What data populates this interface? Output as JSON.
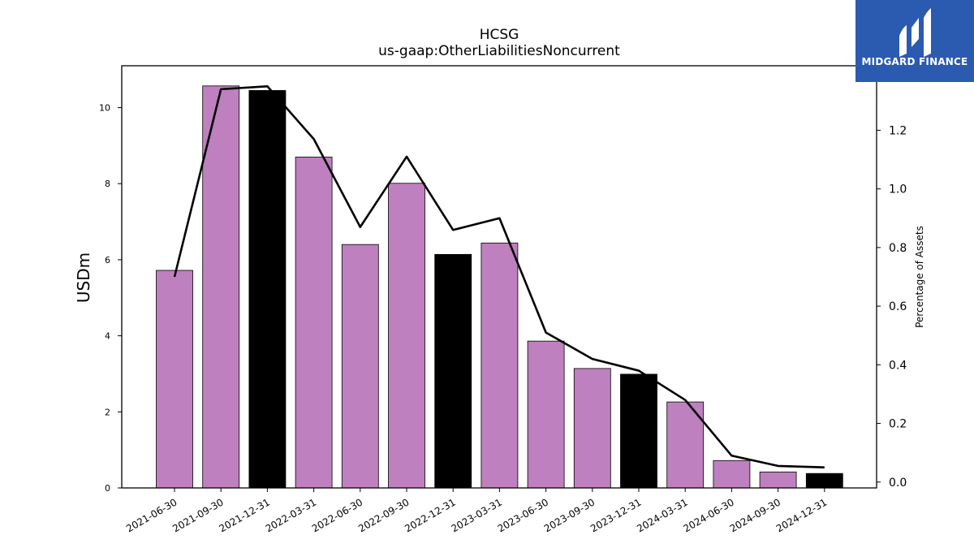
{
  "logo": {
    "text": "MIDGARD FINANCE",
    "bg_color": "#2b5bb0"
  },
  "chart_data": {
    "type": "bar",
    "title": "HCSG",
    "subtitle": "us-gaap:OtherLiabilitiesNoncurrent",
    "ylabel": "USDm",
    "y2label": "Percentage of Assets",
    "ylim": [
      0,
      11.1
    ],
    "y2lim": [
      -0.02,
      1.42
    ],
    "yticks": [
      0,
      2,
      4,
      6,
      8,
      10
    ],
    "y2ticks": [
      0.0,
      0.2,
      0.4,
      0.6,
      0.8,
      1.0,
      1.2
    ],
    "categories": [
      "2021-06-30",
      "2021-09-30",
      "2021-12-31",
      "2022-03-31",
      "2022-06-30",
      "2022-09-30",
      "2022-12-31",
      "2023-03-31",
      "2023-06-30",
      "2023-09-30",
      "2023-12-31",
      "2024-03-31",
      "2024-06-30",
      "2024-09-30",
      "2024-12-31"
    ],
    "series": [
      {
        "values": [
          5.72,
          10.57,
          10.45,
          8.7,
          6.4,
          8.01,
          6.14,
          6.44,
          3.86,
          3.14,
          2.99,
          2.26,
          0.72,
          0.42,
          0.38
        ]
      },
      {
        "values": [
          0.7,
          1.34,
          1.35,
          1.17,
          0.87,
          1.11,
          0.86,
          0.9,
          0.51,
          0.42,
          0.38,
          0.28,
          0.09,
          0.055,
          0.05
        ]
      }
    ],
    "bar_colors": [
      "#bf80bf",
      "#bf80bf",
      "#000000",
      "#bf80bf",
      "#bf80bf",
      "#bf80bf",
      "#000000",
      "#bf80bf",
      "#bf80bf",
      "#bf80bf",
      "#000000",
      "#bf80bf",
      "#bf80bf",
      "#bf80bf",
      "#000000"
    ],
    "line_color": "#000000",
    "grid": false
  }
}
